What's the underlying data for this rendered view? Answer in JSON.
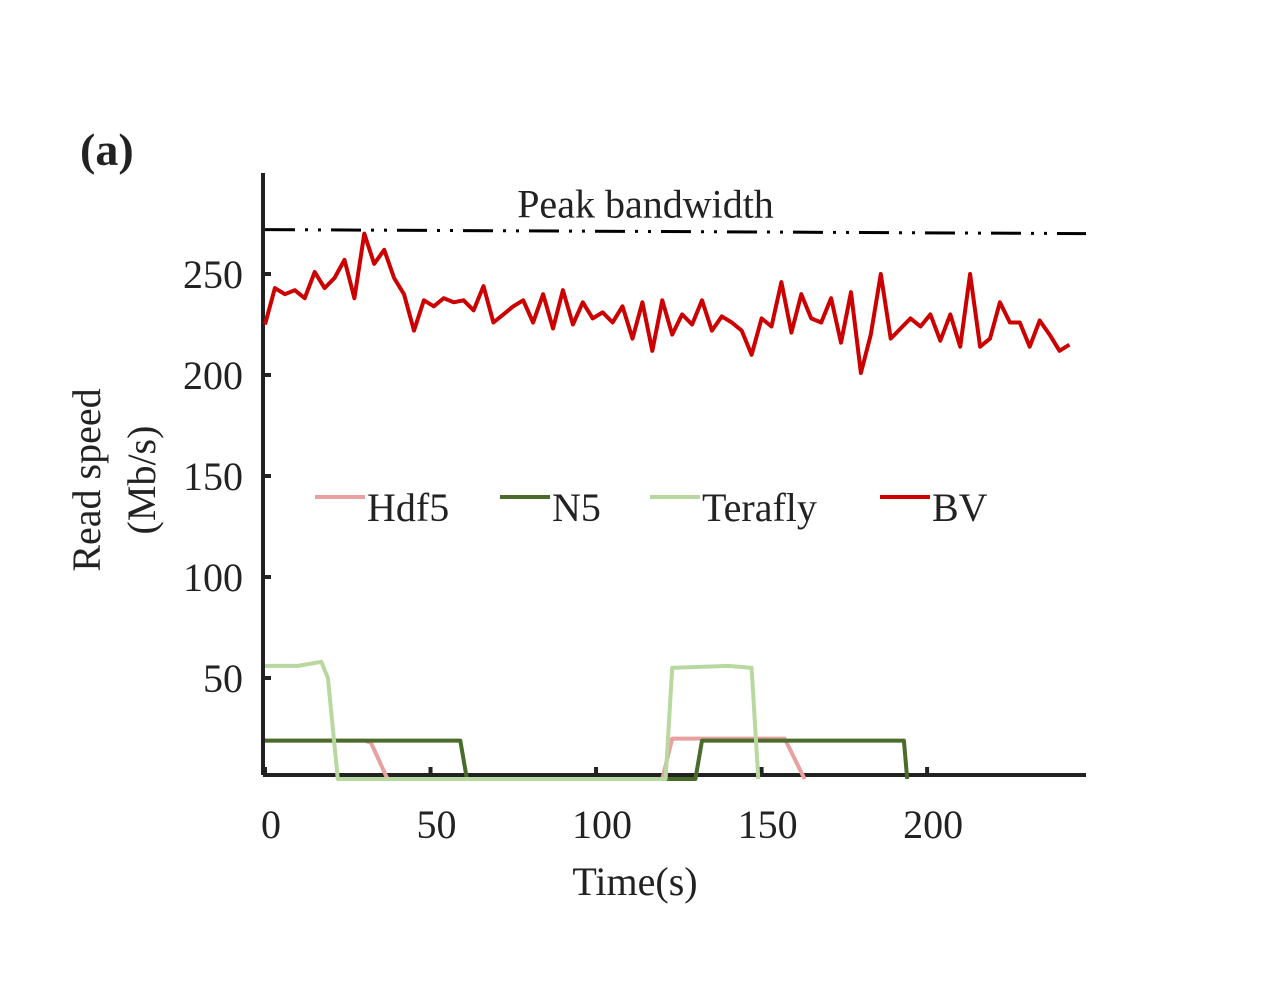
{
  "panel_label": "(a)",
  "chart_data": {
    "type": "line",
    "xlabel": "Time(s)",
    "ylabel": [
      "Read speed",
      "(Mb/s)"
    ],
    "xlim": [
      0,
      248
    ],
    "ylim": [
      0,
      300
    ],
    "xticks": [
      0,
      50,
      100,
      150,
      200
    ],
    "yticks": [
      50,
      100,
      150,
      200,
      250
    ],
    "annotations": [
      {
        "text": "Peak bandwidth",
        "x": [
          0,
          248
        ],
        "values": [
          272,
          270
        ],
        "color": "#000000"
      }
    ],
    "series": [
      {
        "name": "Hdf5",
        "color": "#e8a0a0",
        "x": [
          0,
          30,
          32,
          37,
          120,
          123,
          157,
          163
        ],
        "values": [
          19,
          19,
          18,
          0,
          0,
          20,
          20,
          0
        ]
      },
      {
        "name": "N5",
        "color": "#4a6b2a",
        "x": [
          0,
          20,
          40,
          59,
          61,
          130,
          132,
          160,
          193,
          194
        ],
        "values": [
          19,
          19,
          19,
          19,
          0,
          0,
          19,
          19,
          19,
          0
        ]
      },
      {
        "name": "Terafly",
        "color": "#b8d8a0",
        "x": [
          0,
          10,
          17,
          19,
          22,
          121,
          123,
          140,
          147,
          149
        ],
        "values": [
          56,
          56,
          58,
          50,
          0,
          0,
          55,
          56,
          55,
          0
        ]
      },
      {
        "name": "BV",
        "color": "#cc0000",
        "x": [
          0,
          3,
          6,
          9,
          12,
          15,
          18,
          21,
          24,
          27,
          30,
          33,
          36,
          39,
          42,
          45,
          48,
          51,
          54,
          57,
          60,
          63,
          66,
          69,
          72,
          75,
          78,
          81,
          84,
          87,
          90,
          93,
          96,
          99,
          102,
          105,
          108,
          111,
          114,
          117,
          120,
          123,
          126,
          129,
          132,
          135,
          138,
          141,
          144,
          147,
          150,
          153,
          156,
          159,
          162,
          165,
          168,
          171,
          174,
          177,
          180,
          183,
          186,
          189,
          192,
          195,
          198,
          201,
          204,
          207,
          210,
          213,
          216,
          219,
          222,
          225,
          228,
          231,
          234,
          237,
          240,
          243
        ],
        "values": [
          225,
          243,
          240,
          242,
          238,
          251,
          243,
          248,
          257,
          238,
          270,
          255,
          262,
          248,
          240,
          222,
          237,
          234,
          238,
          236,
          237,
          232,
          244,
          226,
          230,
          234,
          237,
          226,
          240,
          223,
          242,
          225,
          236,
          228,
          231,
          226,
          234,
          218,
          236,
          212,
          237,
          220,
          230,
          225,
          237,
          222,
          229,
          226,
          222,
          210,
          228,
          224,
          246,
          221,
          240,
          228,
          226,
          238,
          216,
          241,
          201,
          220,
          250,
          218,
          223,
          228,
          224,
          230,
          217,
          230,
          214,
          250,
          214,
          218,
          236,
          226,
          226,
          214,
          227,
          220,
          212,
          215
        ]
      }
    ],
    "legend": "center"
  }
}
